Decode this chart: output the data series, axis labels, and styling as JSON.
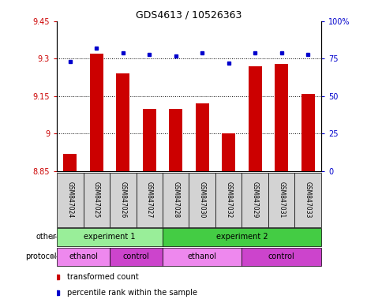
{
  "title": "GDS4613 / 10526363",
  "samples": [
    "GSM847024",
    "GSM847025",
    "GSM847026",
    "GSM847027",
    "GSM847028",
    "GSM847030",
    "GSM847032",
    "GSM847029",
    "GSM847031",
    "GSM847033"
  ],
  "bar_values": [
    8.92,
    9.32,
    9.24,
    9.1,
    9.1,
    9.12,
    9.0,
    9.27,
    9.28,
    9.16
  ],
  "dot_values": [
    73,
    82,
    79,
    78,
    77,
    79,
    72,
    79,
    79,
    78
  ],
  "ylim_left": [
    8.85,
    9.45
  ],
  "ylim_right": [
    0,
    100
  ],
  "yticks_left": [
    8.85,
    9.0,
    9.15,
    9.3,
    9.45
  ],
  "yticks_left_labels": [
    "8.85",
    "9",
    "9.15",
    "9.3",
    "9.45"
  ],
  "yticks_right": [
    0,
    25,
    50,
    75,
    100
  ],
  "yticks_right_labels": [
    "0",
    "25",
    "50",
    "75",
    "100%"
  ],
  "hlines": [
    9.0,
    9.15,
    9.3
  ],
  "bar_color": "#cc0000",
  "dot_color": "#0000cc",
  "left_axis_color": "#cc0000",
  "right_axis_color": "#0000cc",
  "groups": [
    {
      "label": "experiment 1",
      "start": 0,
      "end": 4,
      "color": "#99ee99"
    },
    {
      "label": "experiment 2",
      "start": 4,
      "end": 10,
      "color": "#44cc44"
    }
  ],
  "protocols": [
    {
      "label": "ethanol",
      "start": 0,
      "end": 2,
      "color": "#ee88ee"
    },
    {
      "label": "control",
      "start": 2,
      "end": 4,
      "color": "#cc44cc"
    },
    {
      "label": "ethanol",
      "start": 4,
      "end": 7,
      "color": "#ee88ee"
    },
    {
      "label": "control",
      "start": 7,
      "end": 10,
      "color": "#cc44cc"
    }
  ],
  "legend_items": [
    {
      "label": "transformed count",
      "color": "#cc0000"
    },
    {
      "label": "percentile rank within the sample",
      "color": "#0000cc"
    }
  ],
  "other_label": "other",
  "protocol_label": "protocol",
  "sample_bg_color": "#d3d3d3"
}
